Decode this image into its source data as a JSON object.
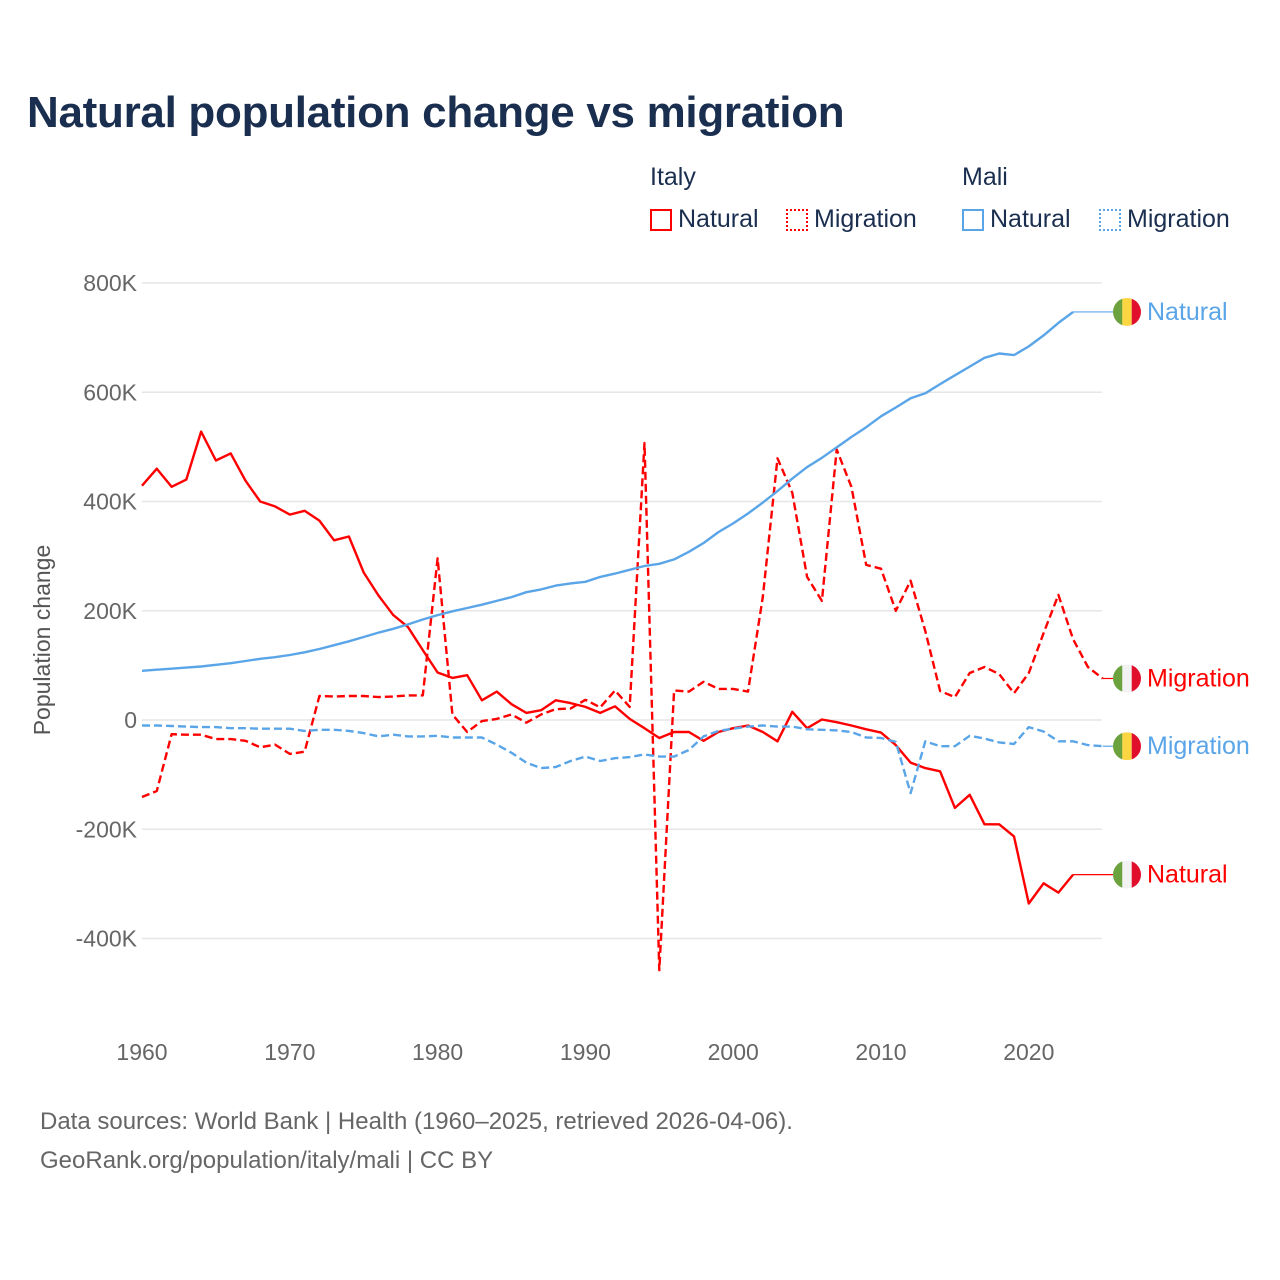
{
  "chart_data": {
    "type": "line",
    "title": "Natural population change vs migration",
    "xlabel": "",
    "ylabel": "Population change",
    "xlim": [
      1960,
      2025
    ],
    "ylim": [
      -500000,
      850000
    ],
    "x_ticks": [
      1960,
      1970,
      1980,
      1990,
      2000,
      2010,
      2020
    ],
    "y_ticks": [
      {
        "value": 800000,
        "label": "800K"
      },
      {
        "value": 600000,
        "label": "600K"
      },
      {
        "value": 400000,
        "label": "400K"
      },
      {
        "value": 200000,
        "label": "200K"
      },
      {
        "value": 0,
        "label": "0"
      },
      {
        "value": -200000,
        "label": "-200K"
      },
      {
        "value": -400000,
        "label": "-400K"
      }
    ],
    "grid": true,
    "legend_placement": "top-right",
    "legend": {
      "groups": [
        {
          "name": "Italy",
          "items": [
            "Natural",
            "Migration"
          ]
        },
        {
          "name": "Mali",
          "items": [
            "Natural",
            "Migration"
          ]
        }
      ]
    },
    "series": [
      {
        "name": "Italy Natural",
        "country": "Italy",
        "kind": "Natural",
        "label": "Natural",
        "color": "#ff0000",
        "style": "solid",
        "flag": "italy-flag",
        "start_year": 1960,
        "values_k": [
          429,
          460,
          427,
          440,
          528,
          475,
          488,
          438,
          400,
          391,
          376,
          383,
          365,
          329,
          336,
          270,
          228,
          192,
          170,
          128,
          87,
          77,
          82,
          36,
          52,
          29,
          13,
          18,
          36,
          31,
          24,
          13,
          25,
          2,
          -15,
          -33,
          -22,
          -22,
          -38,
          -22,
          -15,
          -10,
          -22,
          -39,
          15,
          -15,
          1,
          -4,
          -10,
          -17,
          -23,
          -46,
          -78,
          -88,
          -94,
          -161,
          -137,
          -191,
          -191,
          -213,
          -336,
          -299,
          -316,
          -283
        ]
      },
      {
        "name": "Italy Migration",
        "country": "Italy",
        "kind": "Migration",
        "label": "Migration",
        "color": "#ff0000",
        "style": "dashed",
        "flag": "italy-flag",
        "start_year": 1960,
        "values_k": [
          -141,
          -130,
          -26,
          -27,
          -27,
          -35,
          -35,
          -38,
          -50,
          -45,
          -62,
          -58,
          44,
          43,
          44,
          44,
          42,
          43,
          45,
          45,
          296,
          10,
          -22,
          -2,
          2,
          10,
          -5,
          10,
          20,
          21,
          37,
          23,
          54,
          24,
          507,
          -458,
          54,
          52,
          70,
          57,
          57,
          52,
          225,
          479,
          416,
          262,
          218,
          495,
          427,
          284,
          277,
          200,
          255,
          163,
          53,
          42,
          86,
          97,
          84,
          49,
          86,
          159,
          229,
          148,
          97,
          76
        ]
      },
      {
        "name": "Mali Natural",
        "country": "Mali",
        "kind": "Natural",
        "label": "Natural",
        "color": "#5aa5e8",
        "style": "solid",
        "flag": "mali-flag",
        "start_year": 1960,
        "values_k": [
          90,
          92,
          94,
          96,
          98,
          101,
          104,
          108,
          112,
          115,
          119,
          124,
          130,
          137,
          144,
          152,
          160,
          167,
          175,
          184,
          192,
          199,
          205,
          211,
          218,
          225,
          234,
          239,
          246,
          250,
          253,
          262,
          268,
          275,
          282,
          286,
          294,
          308,
          324,
          344,
          360,
          378,
          398,
          419,
          442,
          463,
          480,
          499,
          518,
          536,
          556,
          572,
          589,
          598,
          615,
          631,
          647,
          663,
          671,
          668,
          684,
          704,
          727,
          747
        ]
      },
      {
        "name": "Mali Migration",
        "country": "Mali",
        "kind": "Migration",
        "label": "Migration",
        "color": "#5aa5e8",
        "style": "dashed",
        "flag": "mali-flag",
        "start_year": 1960,
        "values_k": [
          -10,
          -10,
          -11,
          -12,
          -13,
          -13,
          -15,
          -15,
          -16,
          -16,
          -16,
          -20,
          -18,
          -18,
          -20,
          -24,
          -30,
          -27,
          -30,
          -30,
          -29,
          -32,
          -32,
          -32,
          -45,
          -60,
          -78,
          -88,
          -86,
          -75,
          -67,
          -75,
          -70,
          -68,
          -63,
          -67,
          -67,
          -55,
          -30,
          -20,
          -16,
          -12,
          -10,
          -12,
          -12,
          -17,
          -18,
          -19,
          -22,
          -32,
          -33,
          -40,
          -134,
          -39,
          -48,
          -48,
          -29,
          -34,
          -41,
          -44,
          -13,
          -21,
          -39,
          -39,
          -46,
          -48
        ]
      }
    ]
  },
  "footer": {
    "line1": "Data sources: World Bank | Health (1960–2025, retrieved 2026-04-06).",
    "line2": "GeoRank.org/population/italy/mali | CC BY"
  }
}
